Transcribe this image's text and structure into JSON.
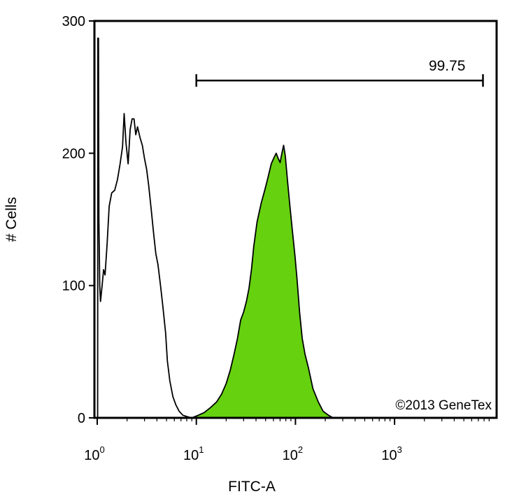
{
  "chart_data": {
    "type": "area",
    "xlabel": "FITC-A",
    "ylabel": "# Cells",
    "x_scale": "log10",
    "xlim": [
      1,
      8000
    ],
    "ylim": [
      0,
      300
    ],
    "yticks": [
      0,
      100,
      200,
      300
    ],
    "xticks": [
      {
        "value": 1,
        "base": "10",
        "exp": "0"
      },
      {
        "value": 10,
        "base": "10",
        "exp": "1"
      },
      {
        "value": 100,
        "base": "10",
        "exp": "2"
      },
      {
        "value": 1000,
        "base": "10",
        "exp": "3"
      }
    ],
    "gate": {
      "x_start": 10,
      "x_end": 7800,
      "y": 255,
      "label": "99.75"
    },
    "watermark": "©2013 GeneTex",
    "series": [
      {
        "style": "outline",
        "color": "#000000",
        "points": [
          [
            1.01,
            0
          ],
          [
            1.015,
            287
          ],
          [
            1.03,
            287
          ],
          [
            1.04,
            150
          ],
          [
            1.06,
            100
          ],
          [
            1.08,
            88
          ],
          [
            1.12,
            100
          ],
          [
            1.16,
            112
          ],
          [
            1.2,
            108
          ],
          [
            1.26,
            132
          ],
          [
            1.32,
            160
          ],
          [
            1.4,
            170
          ],
          [
            1.5,
            172
          ],
          [
            1.6,
            180
          ],
          [
            1.7,
            192
          ],
          [
            1.8,
            205
          ],
          [
            1.87,
            230
          ],
          [
            1.95,
            208
          ],
          [
            2.05,
            192
          ],
          [
            2.15,
            218
          ],
          [
            2.25,
            226
          ],
          [
            2.35,
            226
          ],
          [
            2.45,
            214
          ],
          [
            2.55,
            220
          ],
          [
            2.7,
            212
          ],
          [
            2.85,
            206
          ],
          [
            3.0,
            196
          ],
          [
            3.15,
            188
          ],
          [
            3.3,
            176
          ],
          [
            3.5,
            158
          ],
          [
            3.7,
            140
          ],
          [
            3.9,
            124
          ],
          [
            4.1,
            116
          ],
          [
            4.35,
            100
          ],
          [
            4.6,
            84
          ],
          [
            4.9,
            64
          ],
          [
            5.1,
            43
          ],
          [
            5.4,
            28
          ],
          [
            5.8,
            16
          ],
          [
            6.2,
            10
          ],
          [
            6.7,
            5
          ],
          [
            7.3,
            2
          ],
          [
            8.0,
            1
          ],
          [
            9.0,
            0
          ]
        ]
      },
      {
        "style": "filled",
        "color": "#66d10f",
        "points": [
          [
            9,
            0
          ],
          [
            10.5,
            2
          ],
          [
            12,
            4
          ],
          [
            14,
            8
          ],
          [
            16,
            12
          ],
          [
            18,
            18
          ],
          [
            20,
            26
          ],
          [
            22,
            36
          ],
          [
            24,
            48
          ],
          [
            26,
            60
          ],
          [
            28,
            74
          ],
          [
            30,
            80
          ],
          [
            32,
            88
          ],
          [
            34,
            98
          ],
          [
            36,
            112
          ],
          [
            38,
            130
          ],
          [
            41,
            148
          ],
          [
            45,
            162
          ],
          [
            49,
            172
          ],
          [
            53,
            182
          ],
          [
            57,
            192
          ],
          [
            61,
            197
          ],
          [
            64,
            200
          ],
          [
            67,
            196
          ],
          [
            70,
            193
          ],
          [
            73,
            200
          ],
          [
            76,
            206
          ],
          [
            79,
            198
          ],
          [
            83,
            180
          ],
          [
            88,
            160
          ],
          [
            93,
            142
          ],
          [
            99,
            122
          ],
          [
            104,
            104
          ],
          [
            110,
            80
          ],
          [
            117,
            60
          ],
          [
            125,
            48
          ],
          [
            135,
            38
          ],
          [
            150,
            22
          ],
          [
            170,
            12
          ],
          [
            190,
            5
          ],
          [
            215,
            2
          ],
          [
            240,
            0
          ]
        ]
      }
    ]
  }
}
